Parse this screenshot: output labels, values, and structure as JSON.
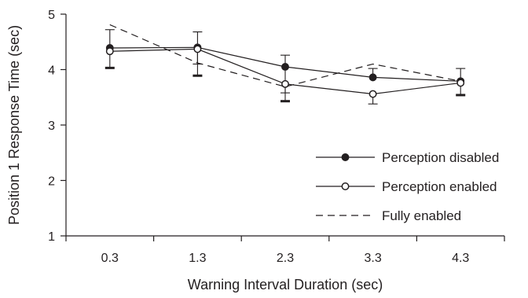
{
  "chart_data": {
    "type": "line",
    "title": "",
    "xlabel": "Warning Interval Duration (sec)",
    "ylabel": "Position 1 Response Time (sec)",
    "categories": [
      "0.3",
      "1.3",
      "2.3",
      "3.3",
      "4.3"
    ],
    "ylim": [
      1,
      5
    ],
    "yticks": [
      "1",
      "2",
      "3",
      "4",
      "5"
    ],
    "grid": false,
    "legend_position": "bottom-right",
    "series": [
      {
        "name": "Perception disabled",
        "style": "solid-filled-marker",
        "values": [
          4.39,
          4.4,
          4.05,
          3.86,
          3.79
        ],
        "error_upper": [
          4.72,
          4.68,
          4.26,
          4.02,
          4.02
        ],
        "error_lower": [
          4.03,
          3.89,
          3.43,
          3.86,
          3.54
        ]
      },
      {
        "name": "Perception enabled",
        "style": "solid-open-marker",
        "values": [
          4.33,
          4.37,
          3.74,
          3.56,
          3.76
        ],
        "error_upper": [
          4.33,
          4.37,
          3.74,
          3.56,
          3.76
        ],
        "error_lower": [
          4.33,
          4.1,
          3.58,
          3.38,
          3.76
        ]
      },
      {
        "name": "Fully enabled",
        "style": "dashed",
        "values": [
          4.81,
          4.12,
          3.69,
          4.1,
          3.79
        ]
      }
    ]
  }
}
